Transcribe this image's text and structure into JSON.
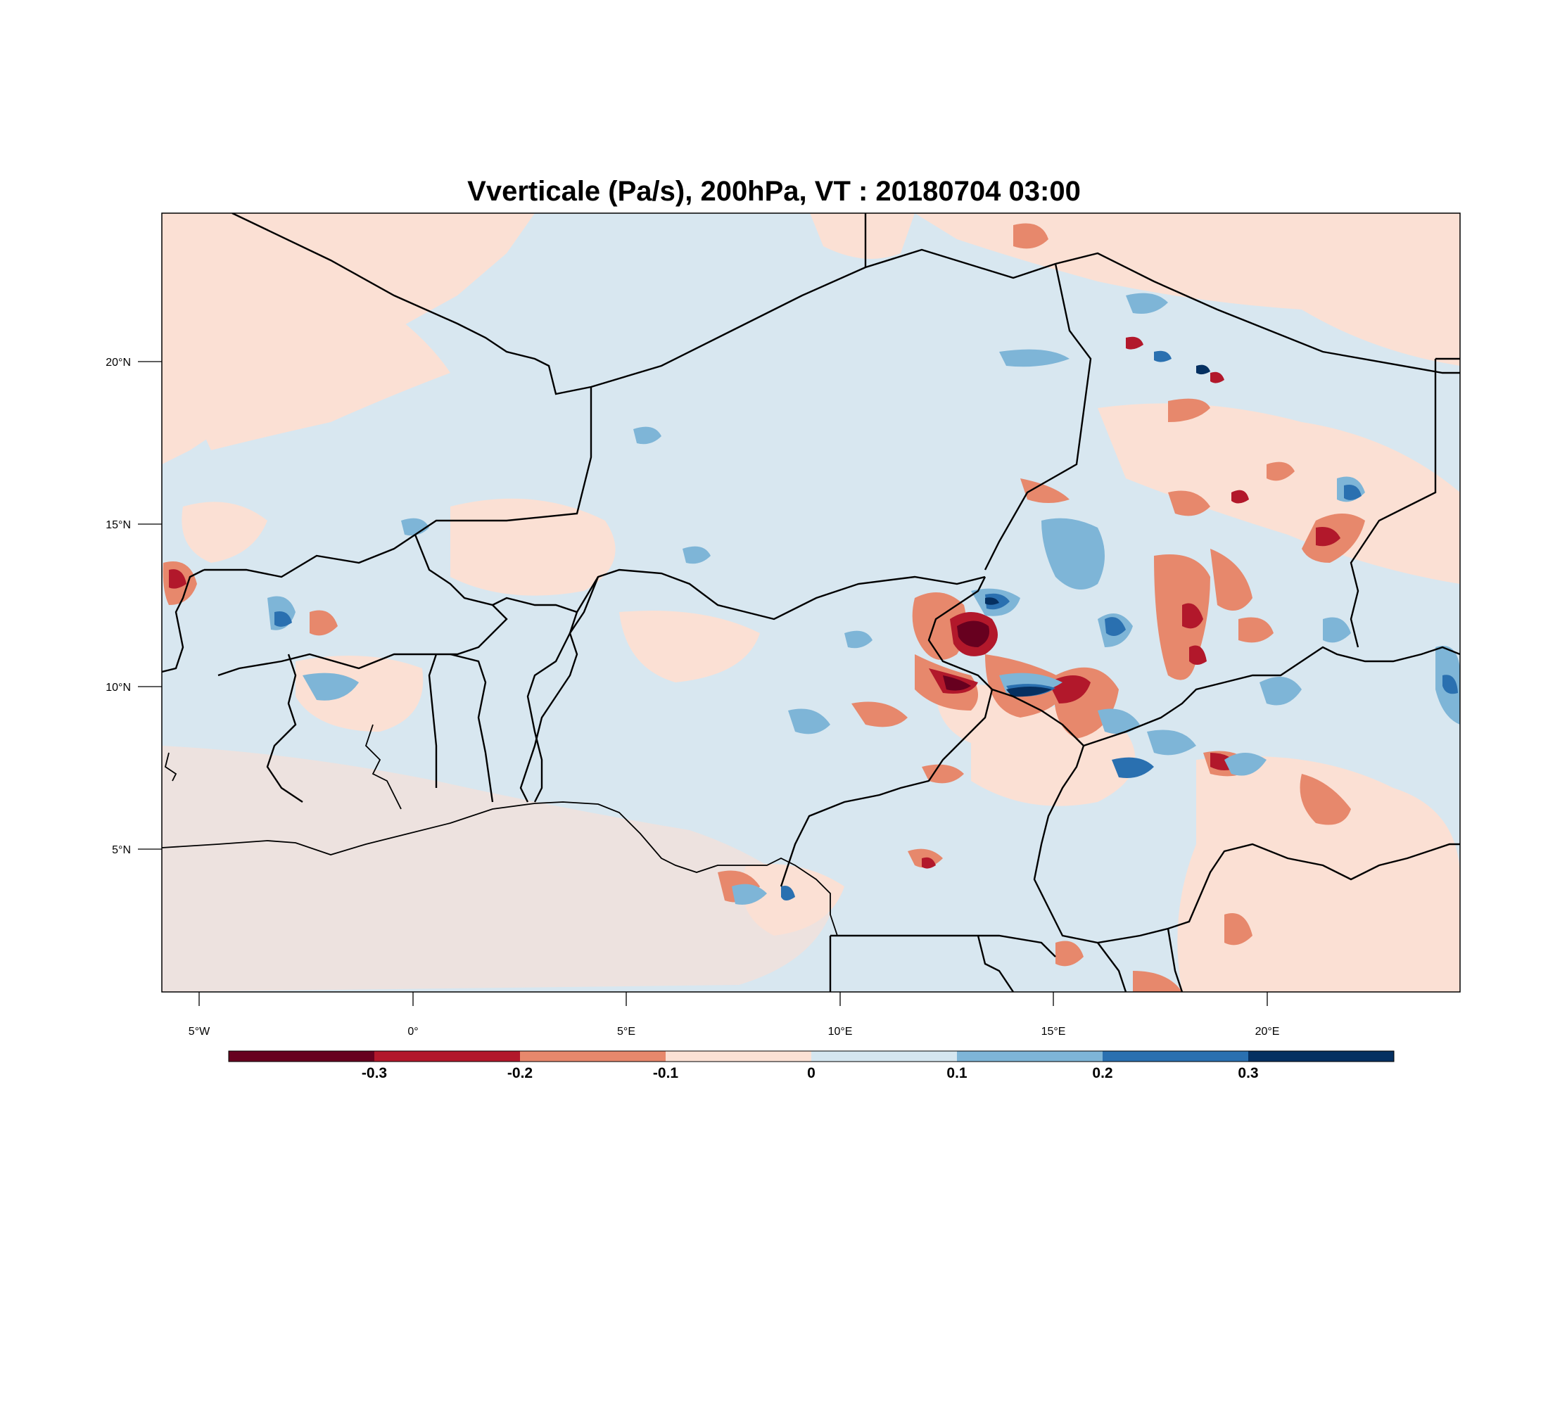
{
  "title": "Vverticale (Pa/s), 200hPa, VT : 20180704  03:00",
  "map": {
    "lon_range": [
      -5.9,
      24.4
    ],
    "lat_range": [
      0.8,
      24.4
    ],
    "lon_ticks": [
      "5°W",
      "0°",
      "5°E",
      "10°E",
      "15°E",
      "20°E"
    ],
    "lat_ticks": [
      "20°N",
      "15°N",
      "10°N",
      "5°N"
    ],
    "background_value_range": [
      0,
      0.1
    ]
  },
  "colorbar": {
    "labels": [
      "-0.3",
      "-0.2",
      "-0.1",
      "0",
      "0.1",
      "0.2",
      "0.3"
    ],
    "colors": [
      "#67001f",
      "#b2182b",
      "#e7886c",
      "#fbe1d5",
      "#d5e6f0",
      "#7eb5d7",
      "#2a70b0",
      "#053061"
    ]
  }
}
